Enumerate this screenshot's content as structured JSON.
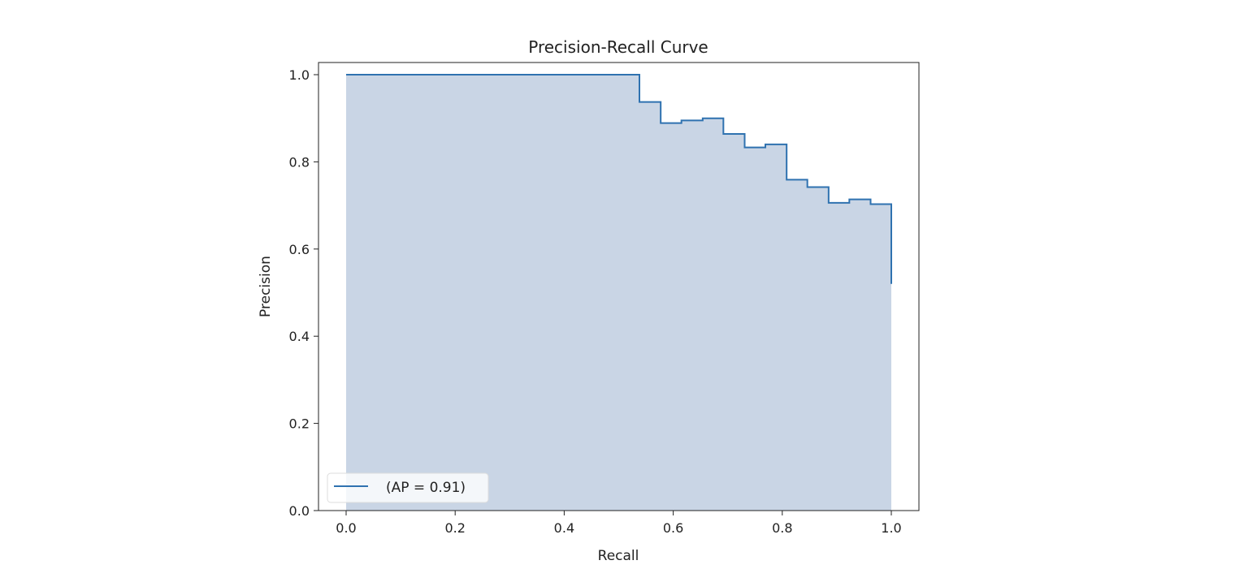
{
  "chart_data": {
    "type": "line",
    "style": "step-post with filled area",
    "title": "Precision-Recall Curve",
    "xlabel": "Recall",
    "ylabel": "Precision",
    "xlim": [
      -0.05,
      1.05
    ],
    "ylim": [
      0.0,
      1.03
    ],
    "xticks": [
      "0.0",
      "0.2",
      "0.4",
      "0.6",
      "0.8",
      "1.0"
    ],
    "yticks": [
      "0.0",
      "0.2",
      "0.4",
      "0.6",
      "0.8",
      "1.0"
    ],
    "grid": false,
    "legend_position": "lower-left",
    "series": [
      {
        "name": "(AP = 0.91)",
        "color": "#2f72b0",
        "fill_color": "#c9d5e5",
        "points": [
          {
            "recall": 0.0,
            "precision": 1.0
          },
          {
            "recall": 0.538,
            "precision": 0.9375
          },
          {
            "recall": 0.577,
            "precision": 0.889
          },
          {
            "recall": 0.615,
            "precision": 0.895
          },
          {
            "recall": 0.654,
            "precision": 0.9
          },
          {
            "recall": 0.692,
            "precision": 0.864
          },
          {
            "recall": 0.731,
            "precision": 0.833
          },
          {
            "recall": 0.769,
            "precision": 0.84
          },
          {
            "recall": 0.808,
            "precision": 0.759
          },
          {
            "recall": 0.846,
            "precision": 0.742
          },
          {
            "recall": 0.885,
            "precision": 0.706
          },
          {
            "recall": 0.923,
            "precision": 0.714
          },
          {
            "recall": 0.962,
            "precision": 0.703
          },
          {
            "recall": 1.0,
            "precision": 0.52
          }
        ]
      }
    ]
  }
}
